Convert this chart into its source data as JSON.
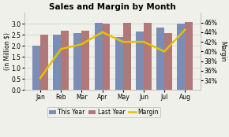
{
  "title": "Sales and Margin by Month",
  "months": [
    "Jan",
    "Feb",
    "Mar",
    "Apr",
    "May",
    "Jun",
    "Jul",
    "Aug"
  ],
  "this_year": [
    2.0,
    2.5,
    2.6,
    3.05,
    2.4,
    2.65,
    2.85,
    3.0
  ],
  "last_year": [
    2.5,
    2.7,
    2.7,
    3.0,
    3.05,
    3.05,
    2.6,
    3.1
  ],
  "margin": [
    0.345,
    0.405,
    0.415,
    0.44,
    0.42,
    0.42,
    0.4,
    0.445
  ],
  "bar_color_this_year": "#7b8db5",
  "bar_color_last_year": "#b07878",
  "line_color": "#e8c000",
  "ylabel_left": "(in Million $)",
  "ylabel_right": "Margin",
  "ylim_left": [
    0.0,
    3.5
  ],
  "ylim_right": [
    0.32,
    0.48
  ],
  "yticks_left": [
    0.0,
    0.5,
    1.0,
    1.5,
    2.0,
    2.5,
    3.0
  ],
  "yticks_right": [
    0.34,
    0.36,
    0.38,
    0.4,
    0.42,
    0.44,
    0.46
  ],
  "legend_labels": [
    "This Year",
    "Last Year",
    "Margin"
  ],
  "background_color": "#f0f0ea",
  "grid_color": "#d0d0d0",
  "title_fontsize": 7.5,
  "axis_fontsize": 5.5,
  "tick_fontsize": 5.5,
  "legend_fontsize": 5.5,
  "bar_width": 0.38,
  "line_width": 1.8
}
